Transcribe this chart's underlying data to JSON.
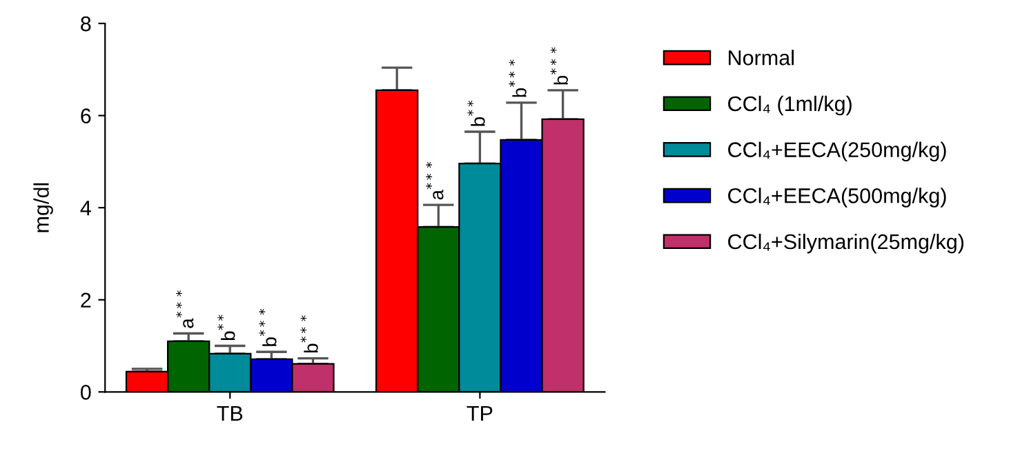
{
  "chart_data": {
    "type": "bar",
    "ylabel": "mg/dl",
    "categories": [
      "TB",
      "TP"
    ],
    "ylim": [
      0,
      8
    ],
    "yticks": [
      0,
      2,
      4,
      6,
      8
    ],
    "grid": false,
    "legend": "right",
    "series": [
      {
        "name": "Normal",
        "color": "#ff0000",
        "values": [
          0.44,
          6.55
        ],
        "errors": [
          [
            0.44,
            0.5
          ],
          [
            6.55,
            7.04
          ]
        ],
        "value_labels": [
          null,
          null
        ]
      },
      {
        "name": "CCl₄ (1ml/kg)",
        "color": "#006400",
        "values": [
          1.1,
          3.58
        ],
        "errors": [
          [
            1.1,
            1.27
          ],
          [
            3.58,
            4.06
          ]
        ],
        "value_labels": [
          "a$^{***}$",
          "a$^{***}$"
        ]
      },
      {
        "name": "CCl₄+EECA(250mg/kg)",
        "color": "#008b9a",
        "values": [
          0.83,
          4.96
        ],
        "errors": [
          [
            0.83,
            1.0
          ],
          [
            4.96,
            5.65
          ]
        ],
        "value_labels": [
          "b$^{**}$",
          "b$^{**}$"
        ]
      },
      {
        "name": "CCl₄+EECA(500mg/kg)",
        "color": "#0000cc",
        "values": [
          0.71,
          5.47
        ],
        "errors": [
          [
            0.71,
            0.87
          ],
          [
            5.47,
            6.28
          ]
        ],
        "value_labels": [
          "b$^{***}$",
          "b$^{***}$"
        ]
      },
      {
        "name": "CCl₄+Silymarin(25mg/kg)",
        "color": "#c0306a",
        "values": [
          0.61,
          5.92
        ],
        "errors": [
          [
            0.61,
            0.73
          ],
          [
            5.92,
            6.55
          ]
        ],
        "value_labels": [
          "b$^{***}$",
          "b$^{***}$"
        ]
      }
    ]
  }
}
